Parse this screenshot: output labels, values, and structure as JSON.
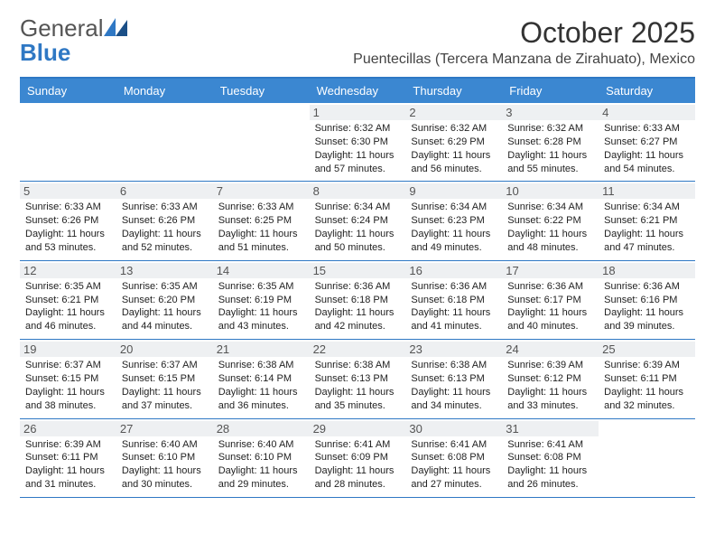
{
  "brand": {
    "text_a": "General",
    "text_b": "Blue"
  },
  "header": {
    "month_title": "October 2025",
    "location": "Puentecillas (Tercera Manzana de Zirahuato), Mexico"
  },
  "colors": {
    "header_bg": "#3b87d1",
    "rule": "#2f78c4",
    "daynum_bg": "#eef0f2",
    "text": "#222222"
  },
  "font": {
    "family": "Arial",
    "body_size_pt": 8,
    "title_size_pt": 24
  },
  "days_of_week": [
    "Sunday",
    "Monday",
    "Tuesday",
    "Wednesday",
    "Thursday",
    "Friday",
    "Saturday"
  ],
  "weeks": [
    [
      {
        "n": null
      },
      {
        "n": null
      },
      {
        "n": null
      },
      {
        "n": 1,
        "sunrise": "6:32 AM",
        "sunset": "6:30 PM",
        "daylight_h": 11,
        "daylight_m": 57
      },
      {
        "n": 2,
        "sunrise": "6:32 AM",
        "sunset": "6:29 PM",
        "daylight_h": 11,
        "daylight_m": 56
      },
      {
        "n": 3,
        "sunrise": "6:32 AM",
        "sunset": "6:28 PM",
        "daylight_h": 11,
        "daylight_m": 55
      },
      {
        "n": 4,
        "sunrise": "6:33 AM",
        "sunset": "6:27 PM",
        "daylight_h": 11,
        "daylight_m": 54
      }
    ],
    [
      {
        "n": 5,
        "sunrise": "6:33 AM",
        "sunset": "6:26 PM",
        "daylight_h": 11,
        "daylight_m": 53
      },
      {
        "n": 6,
        "sunrise": "6:33 AM",
        "sunset": "6:26 PM",
        "daylight_h": 11,
        "daylight_m": 52
      },
      {
        "n": 7,
        "sunrise": "6:33 AM",
        "sunset": "6:25 PM",
        "daylight_h": 11,
        "daylight_m": 51
      },
      {
        "n": 8,
        "sunrise": "6:34 AM",
        "sunset": "6:24 PM",
        "daylight_h": 11,
        "daylight_m": 50
      },
      {
        "n": 9,
        "sunrise": "6:34 AM",
        "sunset": "6:23 PM",
        "daylight_h": 11,
        "daylight_m": 49
      },
      {
        "n": 10,
        "sunrise": "6:34 AM",
        "sunset": "6:22 PM",
        "daylight_h": 11,
        "daylight_m": 48
      },
      {
        "n": 11,
        "sunrise": "6:34 AM",
        "sunset": "6:21 PM",
        "daylight_h": 11,
        "daylight_m": 47
      }
    ],
    [
      {
        "n": 12,
        "sunrise": "6:35 AM",
        "sunset": "6:21 PM",
        "daylight_h": 11,
        "daylight_m": 46
      },
      {
        "n": 13,
        "sunrise": "6:35 AM",
        "sunset": "6:20 PM",
        "daylight_h": 11,
        "daylight_m": 44
      },
      {
        "n": 14,
        "sunrise": "6:35 AM",
        "sunset": "6:19 PM",
        "daylight_h": 11,
        "daylight_m": 43
      },
      {
        "n": 15,
        "sunrise": "6:36 AM",
        "sunset": "6:18 PM",
        "daylight_h": 11,
        "daylight_m": 42
      },
      {
        "n": 16,
        "sunrise": "6:36 AM",
        "sunset": "6:18 PM",
        "daylight_h": 11,
        "daylight_m": 41
      },
      {
        "n": 17,
        "sunrise": "6:36 AM",
        "sunset": "6:17 PM",
        "daylight_h": 11,
        "daylight_m": 40
      },
      {
        "n": 18,
        "sunrise": "6:36 AM",
        "sunset": "6:16 PM",
        "daylight_h": 11,
        "daylight_m": 39
      }
    ],
    [
      {
        "n": 19,
        "sunrise": "6:37 AM",
        "sunset": "6:15 PM",
        "daylight_h": 11,
        "daylight_m": 38
      },
      {
        "n": 20,
        "sunrise": "6:37 AM",
        "sunset": "6:15 PM",
        "daylight_h": 11,
        "daylight_m": 37
      },
      {
        "n": 21,
        "sunrise": "6:38 AM",
        "sunset": "6:14 PM",
        "daylight_h": 11,
        "daylight_m": 36
      },
      {
        "n": 22,
        "sunrise": "6:38 AM",
        "sunset": "6:13 PM",
        "daylight_h": 11,
        "daylight_m": 35
      },
      {
        "n": 23,
        "sunrise": "6:38 AM",
        "sunset": "6:13 PM",
        "daylight_h": 11,
        "daylight_m": 34
      },
      {
        "n": 24,
        "sunrise": "6:39 AM",
        "sunset": "6:12 PM",
        "daylight_h": 11,
        "daylight_m": 33
      },
      {
        "n": 25,
        "sunrise": "6:39 AM",
        "sunset": "6:11 PM",
        "daylight_h": 11,
        "daylight_m": 32
      }
    ],
    [
      {
        "n": 26,
        "sunrise": "6:39 AM",
        "sunset": "6:11 PM",
        "daylight_h": 11,
        "daylight_m": 31
      },
      {
        "n": 27,
        "sunrise": "6:40 AM",
        "sunset": "6:10 PM",
        "daylight_h": 11,
        "daylight_m": 30
      },
      {
        "n": 28,
        "sunrise": "6:40 AM",
        "sunset": "6:10 PM",
        "daylight_h": 11,
        "daylight_m": 29
      },
      {
        "n": 29,
        "sunrise": "6:41 AM",
        "sunset": "6:09 PM",
        "daylight_h": 11,
        "daylight_m": 28
      },
      {
        "n": 30,
        "sunrise": "6:41 AM",
        "sunset": "6:08 PM",
        "daylight_h": 11,
        "daylight_m": 27
      },
      {
        "n": 31,
        "sunrise": "6:41 AM",
        "sunset": "6:08 PM",
        "daylight_h": 11,
        "daylight_m": 26
      },
      {
        "n": null
      }
    ]
  ]
}
